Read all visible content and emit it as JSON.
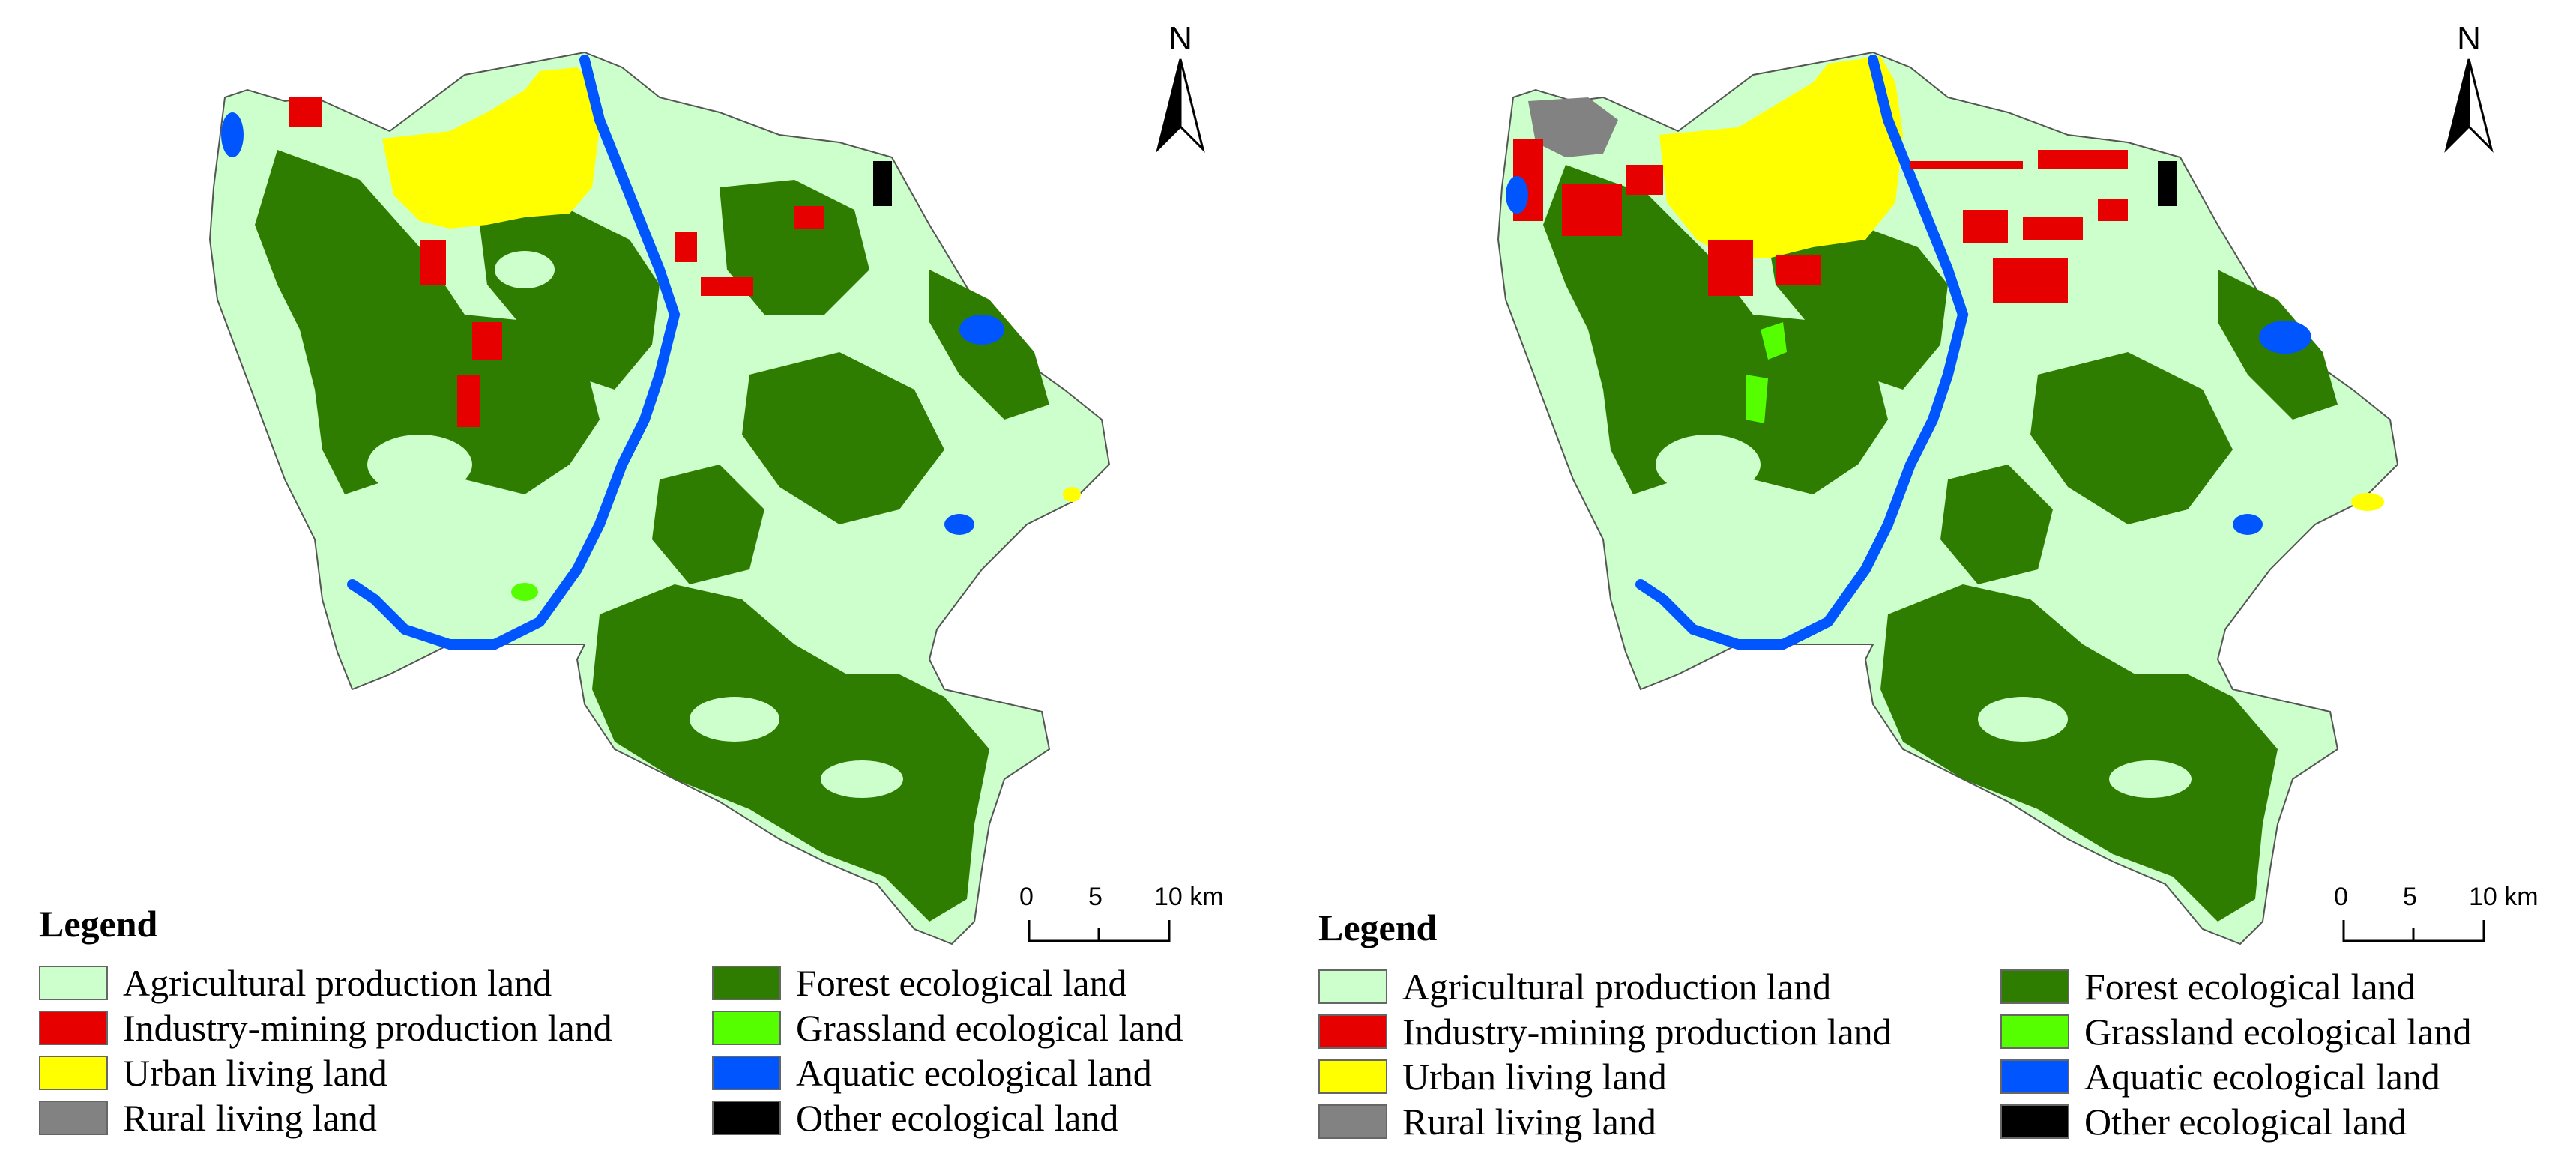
{
  "north_arrow": {
    "letter": "N"
  },
  "scale_bar": {
    "ticks": [
      "0",
      "5",
      "10 km"
    ]
  },
  "legend": {
    "title": "Legend",
    "items": [
      {
        "label": "Agricultural production land",
        "color": "#ccffcc"
      },
      {
        "label": "Industry-mining production land",
        "color": "#e60000"
      },
      {
        "label": "Urban living land",
        "color": "#ffff00"
      },
      {
        "label": "Rural living land",
        "color": "#828282"
      },
      {
        "label": "Forest ecological land",
        "color": "#2e7d00"
      },
      {
        "label": "Grassland ecological land",
        "color": "#55ff00"
      },
      {
        "label": "Aquatic ecological land",
        "color": "#0055ff"
      },
      {
        "label": "Other ecological land",
        "color": "#000000"
      }
    ]
  },
  "colors": {
    "agricultural": "#ccffcc",
    "industry": "#e60000",
    "urban": "#ffff00",
    "rural": "#828282",
    "forest": "#2e7d00",
    "grassland": "#55ff00",
    "aquatic": "#0055ff",
    "other": "#000000"
  }
}
